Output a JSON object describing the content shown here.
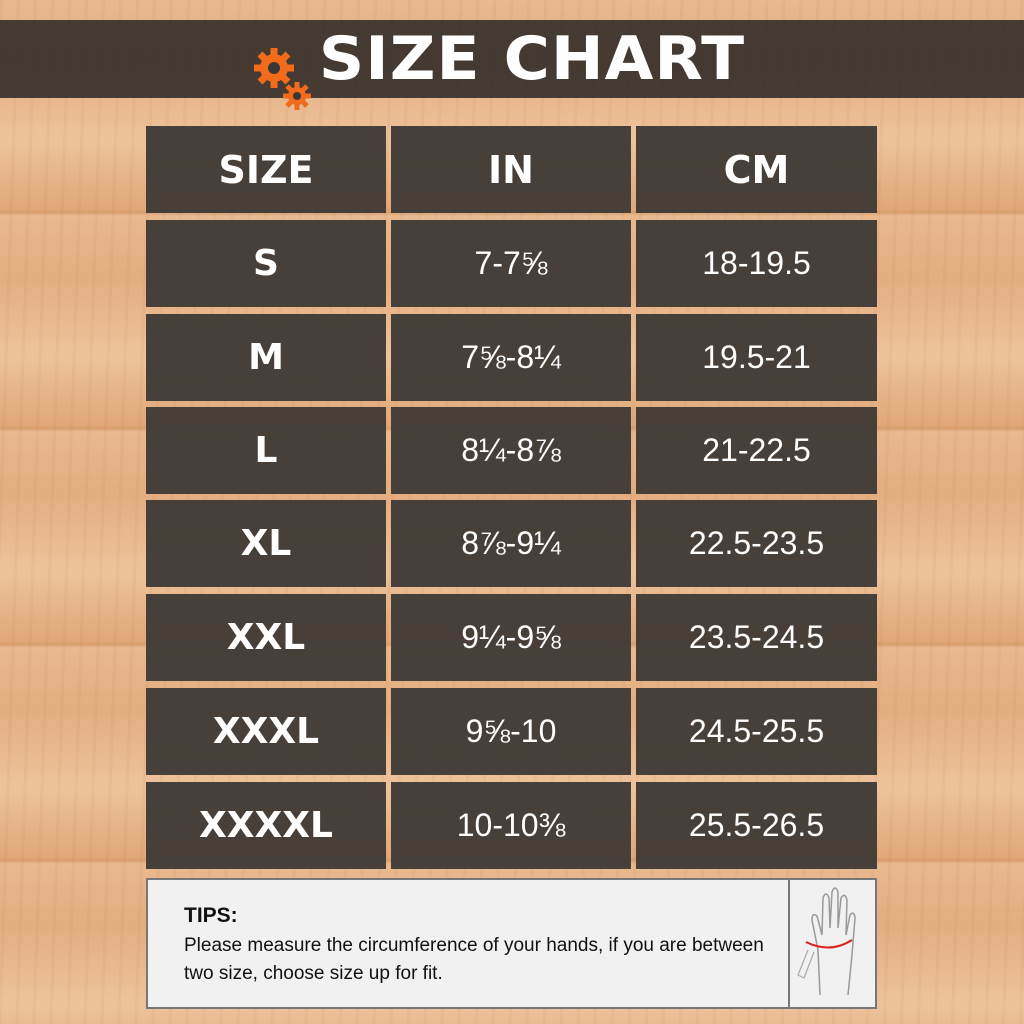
{
  "header": {
    "title": "SIZE CHART",
    "icon": "gears-icon",
    "accent": "#f26a1b"
  },
  "table": {
    "columns": [
      "SIZE",
      "IN",
      "CM"
    ],
    "rows": [
      [
        "S",
        "7-7⅝",
        "18-19.5"
      ],
      [
        "M",
        "7⅝-8¼",
        "19.5-21"
      ],
      [
        "L",
        "8¼-8⅞",
        "21-22.5"
      ],
      [
        "XL",
        "8⅞-9¼",
        "22.5-23.5"
      ],
      [
        "XXL",
        "9¼-9⅝",
        "23.5-24.5"
      ],
      [
        "XXXL",
        "9⅝-10",
        "24.5-25.5"
      ],
      [
        "XXXXL",
        "10-10⅜",
        "25.5-26.5"
      ]
    ]
  },
  "tips": {
    "heading": "TIPS:",
    "text": "Please measure the circumference of your hands, if you are between two size, choose size up for fit.",
    "icon": "hand-measure-icon"
  }
}
